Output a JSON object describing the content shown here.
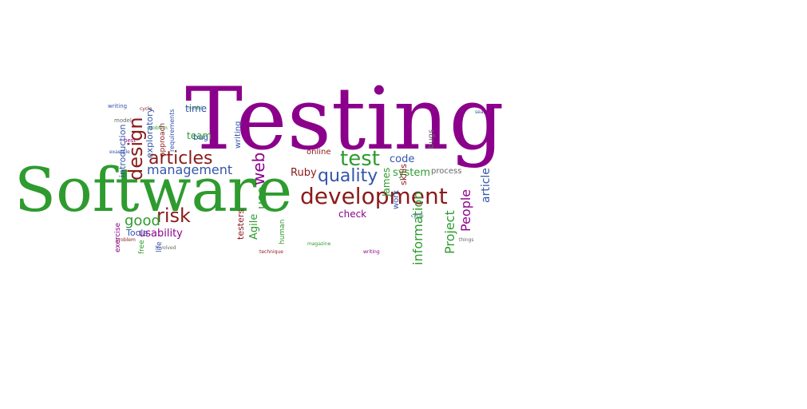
{
  "colors": {
    "purple": "#8b008b",
    "green": "#2e9b2e",
    "darkred": "#8b1a1a",
    "blue": "#3355aa",
    "grey": "#666666"
  },
  "words": {
    "testing": "Testing",
    "software": "Software",
    "development": "development",
    "test": "test",
    "quality": "quality",
    "articles": "articles",
    "management": "management",
    "design": "design",
    "risk": "risk",
    "good": "good",
    "web": "web",
    "use": "use",
    "agile": "Agile",
    "ruby": "Ruby",
    "code": "code",
    "system": "system",
    "people": "People",
    "project": "Project",
    "information": "information",
    "article": "article",
    "usability": "usability",
    "tools": "Tools",
    "team": "team",
    "time": "time",
    "bug": "bug",
    "exploratory": "exploratory",
    "introduction": "introduction",
    "check": "check",
    "testers": "testers",
    "online": "online",
    "human": "human",
    "process": "process",
    "skills": "skills",
    "james": "James",
    "work": "work",
    "bugs": "bugs",
    "life": "life",
    "free": "free",
    "exercise": "exercise",
    "approach": "approach",
    "requirements": "requirements",
    "writing": "writing",
    "cycle": "cycle",
    "model": "model",
    "problem": "problem",
    "magazine": "magazine",
    "technique": "technique",
    "best": "best",
    "involved": "involved",
    "example": "example",
    "search": "search",
    "things": "things"
  }
}
